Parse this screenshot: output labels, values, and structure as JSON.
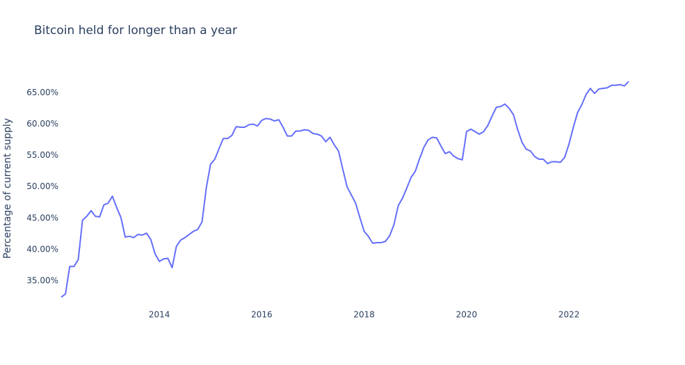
{
  "chart_data": {
    "type": "line",
    "title": "Bitcoin held for longer than a year",
    "y_label": "Percentage of current supply",
    "grid": false,
    "x": [
      "2012-02",
      "2012-03",
      "2012-04",
      "2012-05",
      "2012-06",
      "2012-07",
      "2012-08",
      "2012-09",
      "2012-10",
      "2012-11",
      "2012-12",
      "2013-01",
      "2013-02",
      "2013-03",
      "2013-04",
      "2013-05",
      "2013-06",
      "2013-07",
      "2013-08",
      "2013-09",
      "2013-10",
      "2013-11",
      "2013-12",
      "2014-01",
      "2014-02",
      "2014-03",
      "2014-04",
      "2014-05",
      "2014-06",
      "2014-07",
      "2014-08",
      "2014-09",
      "2014-10",
      "2014-11",
      "2014-12",
      "2015-01",
      "2015-02",
      "2015-03",
      "2015-04",
      "2015-05",
      "2015-06",
      "2015-07",
      "2015-08",
      "2015-09",
      "2015-10",
      "2015-11",
      "2015-12",
      "2016-01",
      "2016-02",
      "2016-03",
      "2016-04",
      "2016-05",
      "2016-06",
      "2016-07",
      "2016-08",
      "2016-09",
      "2016-10",
      "2016-11",
      "2016-12",
      "2017-01",
      "2017-02",
      "2017-03",
      "2017-04",
      "2017-05",
      "2017-06",
      "2017-07",
      "2017-08",
      "2017-09",
      "2017-10",
      "2017-11",
      "2017-12",
      "2018-01",
      "2018-02",
      "2018-03",
      "2018-04",
      "2018-05",
      "2018-06",
      "2018-07",
      "2018-08",
      "2018-09",
      "2018-10",
      "2018-11",
      "2018-12",
      "2019-01",
      "2019-02",
      "2019-03",
      "2019-04",
      "2019-05",
      "2019-06",
      "2019-07",
      "2019-08",
      "2019-09",
      "2019-10",
      "2019-11",
      "2019-12",
      "2020-01",
      "2020-02",
      "2020-03",
      "2020-04",
      "2020-05",
      "2020-06",
      "2020-07",
      "2020-08",
      "2020-09",
      "2020-10",
      "2020-11",
      "2020-12",
      "2021-01",
      "2021-02",
      "2021-03",
      "2021-04",
      "2021-05",
      "2021-06",
      "2021-07",
      "2021-08",
      "2021-09",
      "2021-10",
      "2021-11",
      "2021-12",
      "2022-01",
      "2022-02",
      "2022-03",
      "2022-04",
      "2022-05",
      "2022-06",
      "2022-07",
      "2022-08",
      "2022-09",
      "2022-10",
      "2022-11",
      "2022-12",
      "2023-01",
      "2023-02",
      "2023-03"
    ],
    "series": [
      {
        "name": "Percentage of current supply",
        "color": "#636efa",
        "values": [
          32.4,
          32.9,
          37.3,
          37.3,
          38.4,
          44.7,
          45.3,
          46.2,
          45.3,
          45.2,
          47.1,
          47.4,
          48.5,
          46.7,
          45.1,
          42.0,
          42.1,
          41.9,
          42.4,
          42.3,
          42.6,
          41.6,
          39.3,
          38.1,
          38.5,
          38.6,
          37.1,
          40.5,
          41.5,
          41.9,
          42.4,
          42.9,
          43.2,
          44.4,
          49.8,
          53.6,
          54.4,
          56.1,
          57.7,
          57.7,
          58.2,
          59.6,
          59.5,
          59.5,
          59.9,
          60.0,
          59.7,
          60.6,
          60.9,
          60.8,
          60.5,
          60.7,
          59.5,
          58.1,
          58.1,
          58.9,
          58.9,
          59.1,
          59.0,
          58.5,
          58.4,
          58.1,
          57.2,
          57.9,
          56.7,
          55.7,
          52.8,
          50.0,
          48.7,
          47.4,
          45.1,
          42.9,
          42.1,
          41.0,
          41.1,
          41.1,
          41.3,
          42.2,
          44.0,
          47.0,
          48.2,
          49.8,
          51.5,
          52.5,
          54.5,
          56.3,
          57.5,
          57.9,
          57.8,
          56.5,
          55.3,
          55.6,
          54.9,
          54.5,
          54.3,
          58.8,
          59.2,
          58.8,
          58.4,
          58.8,
          59.8,
          61.3,
          62.7,
          62.8,
          63.2,
          62.5,
          61.5,
          59.1,
          57.1,
          56.0,
          55.7,
          54.8,
          54.4,
          54.4,
          53.7,
          54.0,
          54.0,
          53.9,
          54.7,
          56.8,
          59.4,
          61.8,
          63.1,
          64.7,
          65.7,
          64.9,
          65.6,
          65.7,
          65.8,
          66.2,
          66.2,
          66.3,
          66.1,
          66.8
        ]
      }
    ],
    "xlim": [
      "2012-02",
      "2023-03"
    ],
    "xticks": [
      2014,
      2016,
      2018,
      2020,
      2022
    ],
    "ylim": [
      32.0,
      67.6
    ],
    "yticks": [
      {
        "value": 35,
        "label": "35.00%"
      },
      {
        "value": 40,
        "label": "40.00%"
      },
      {
        "value": 45,
        "label": "45.00%"
      },
      {
        "value": 50,
        "label": "50.00%"
      },
      {
        "value": 55,
        "label": "55.00%"
      },
      {
        "value": 60,
        "label": "60.00%"
      },
      {
        "value": 65,
        "label": "65.00%"
      }
    ]
  }
}
